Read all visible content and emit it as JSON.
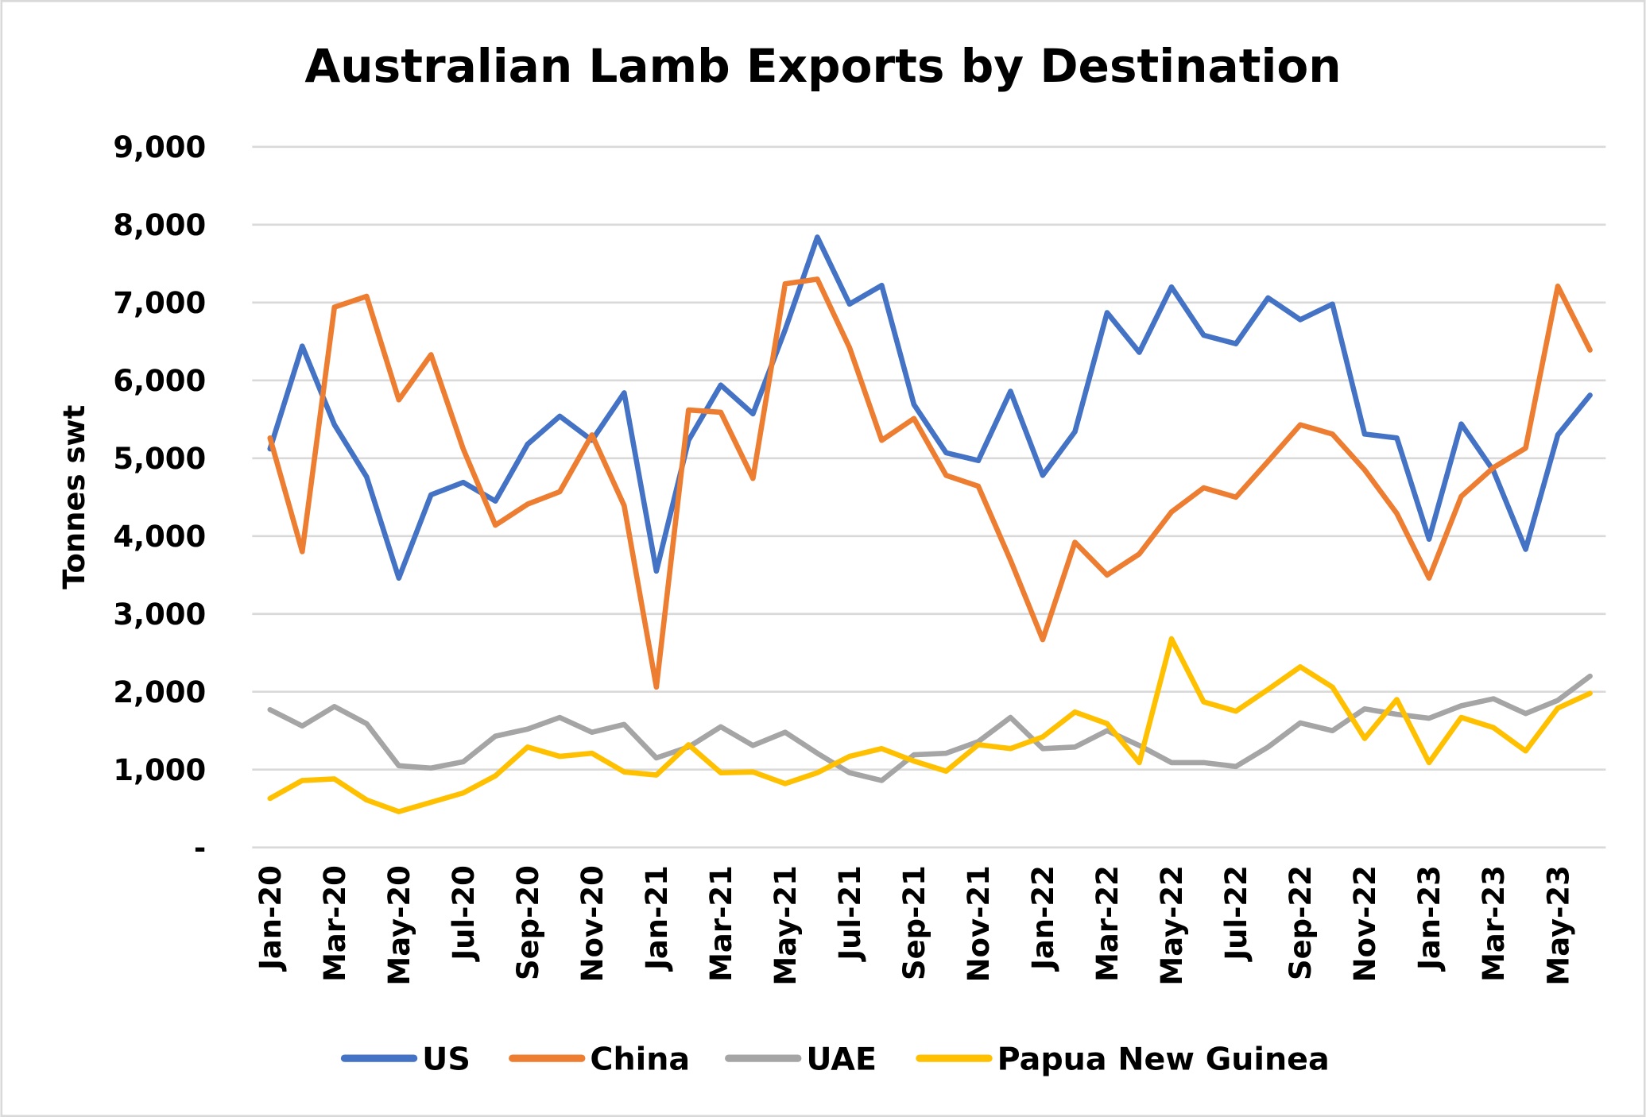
{
  "chart_data": {
    "type": "line",
    "title": "Australian Lamb Exports by Destination",
    "xlabel": "",
    "ylabel": "Tonnes swt",
    "ylim": [
      0,
      9000
    ],
    "yticks": [
      0,
      1000,
      2000,
      3000,
      4000,
      5000,
      6000,
      7000,
      8000,
      9000
    ],
    "ytick_labels": [
      "-",
      "1,000",
      "2,000",
      "3,000",
      "4,000",
      "5,000",
      "6,000",
      "7,000",
      "8,000",
      "9,000"
    ],
    "grid": true,
    "legend": "bottom",
    "x": [
      "Jan-20",
      "Feb-20",
      "Mar-20",
      "Apr-20",
      "May-20",
      "Jun-20",
      "Jul-20",
      "Aug-20",
      "Sep-20",
      "Oct-20",
      "Nov-20",
      "Dec-20",
      "Jan-21",
      "Feb-21",
      "Mar-21",
      "Apr-21",
      "May-21",
      "Jun-21",
      "Jul-21",
      "Aug-21",
      "Sep-21",
      "Oct-21",
      "Nov-21",
      "Dec-21",
      "Jan-22",
      "Feb-22",
      "Mar-22",
      "Apr-22",
      "May-22",
      "Jun-22",
      "Jul-22",
      "Aug-22",
      "Sep-22",
      "Oct-22",
      "Nov-22",
      "Dec-22",
      "Jan-23",
      "Feb-23",
      "Mar-23",
      "Apr-23",
      "May-23",
      "Jun-23"
    ],
    "xtick_labels": [
      "Jan-20",
      "Mar-20",
      "May-20",
      "Jul-20",
      "Sep-20",
      "Nov-20",
      "Jan-21",
      "Mar-21",
      "May-21",
      "Jul-21",
      "Sep-21",
      "Nov-21",
      "Jan-22",
      "Mar-22",
      "May-22",
      "Jul-22",
      "Sep-22",
      "Nov-22",
      "Jan-23",
      "Mar-23",
      "May-23"
    ],
    "series": [
      {
        "name": "US",
        "color": "#4472C4",
        "values": [
          5120,
          6440,
          5430,
          4760,
          3460,
          4530,
          4690,
          4450,
          5180,
          5540,
          5230,
          5840,
          3550,
          5230,
          5940,
          5570,
          6650,
          7840,
          6980,
          7220,
          5690,
          5070,
          4970,
          5860,
          4780,
          5340,
          6870,
          6360,
          7200,
          6580,
          6470,
          7060,
          6780,
          6980,
          5310,
          5260,
          3960,
          5440,
          4840,
          3830,
          5300,
          5810
        ]
      },
      {
        "name": "China",
        "color": "#ED7D31",
        "values": [
          5260,
          3800,
          6940,
          7080,
          5750,
          6330,
          5120,
          4140,
          4410,
          4570,
          5300,
          4390,
          2060,
          5620,
          5590,
          4740,
          7240,
          7300,
          6420,
          5230,
          5510,
          4780,
          4640,
          3690,
          2670,
          3920,
          3500,
          3770,
          4310,
          4620,
          4500,
          4960,
          5430,
          5310,
          4850,
          4290,
          3460,
          4510,
          4880,
          5130,
          7210,
          6390
        ]
      },
      {
        "name": "UAE",
        "color": "#A5A5A5",
        "values": [
          1770,
          1560,
          1810,
          1590,
          1050,
          1020,
          1100,
          1430,
          1520,
          1670,
          1480,
          1580,
          1150,
          1290,
          1550,
          1310,
          1480,
          1210,
          960,
          860,
          1190,
          1210,
          1360,
          1670,
          1270,
          1290,
          1500,
          1310,
          1090,
          1090,
          1040,
          1290,
          1600,
          1500,
          1780,
          1710,
          1660,
          1820,
          1910,
          1720,
          1890,
          2200
        ]
      },
      {
        "name": "Papua New Guinea",
        "color": "#FFC000",
        "values": [
          630,
          860,
          880,
          610,
          460,
          580,
          700,
          920,
          1290,
          1170,
          1210,
          970,
          930,
          1320,
          960,
          970,
          820,
          960,
          1170,
          1270,
          1110,
          980,
          1320,
          1270,
          1420,
          1740,
          1590,
          1090,
          2680,
          1870,
          1750,
          2030,
          2320,
          2060,
          1400,
          1900,
          1090,
          1670,
          1540,
          1240,
          1790,
          1980
        ]
      }
    ]
  }
}
